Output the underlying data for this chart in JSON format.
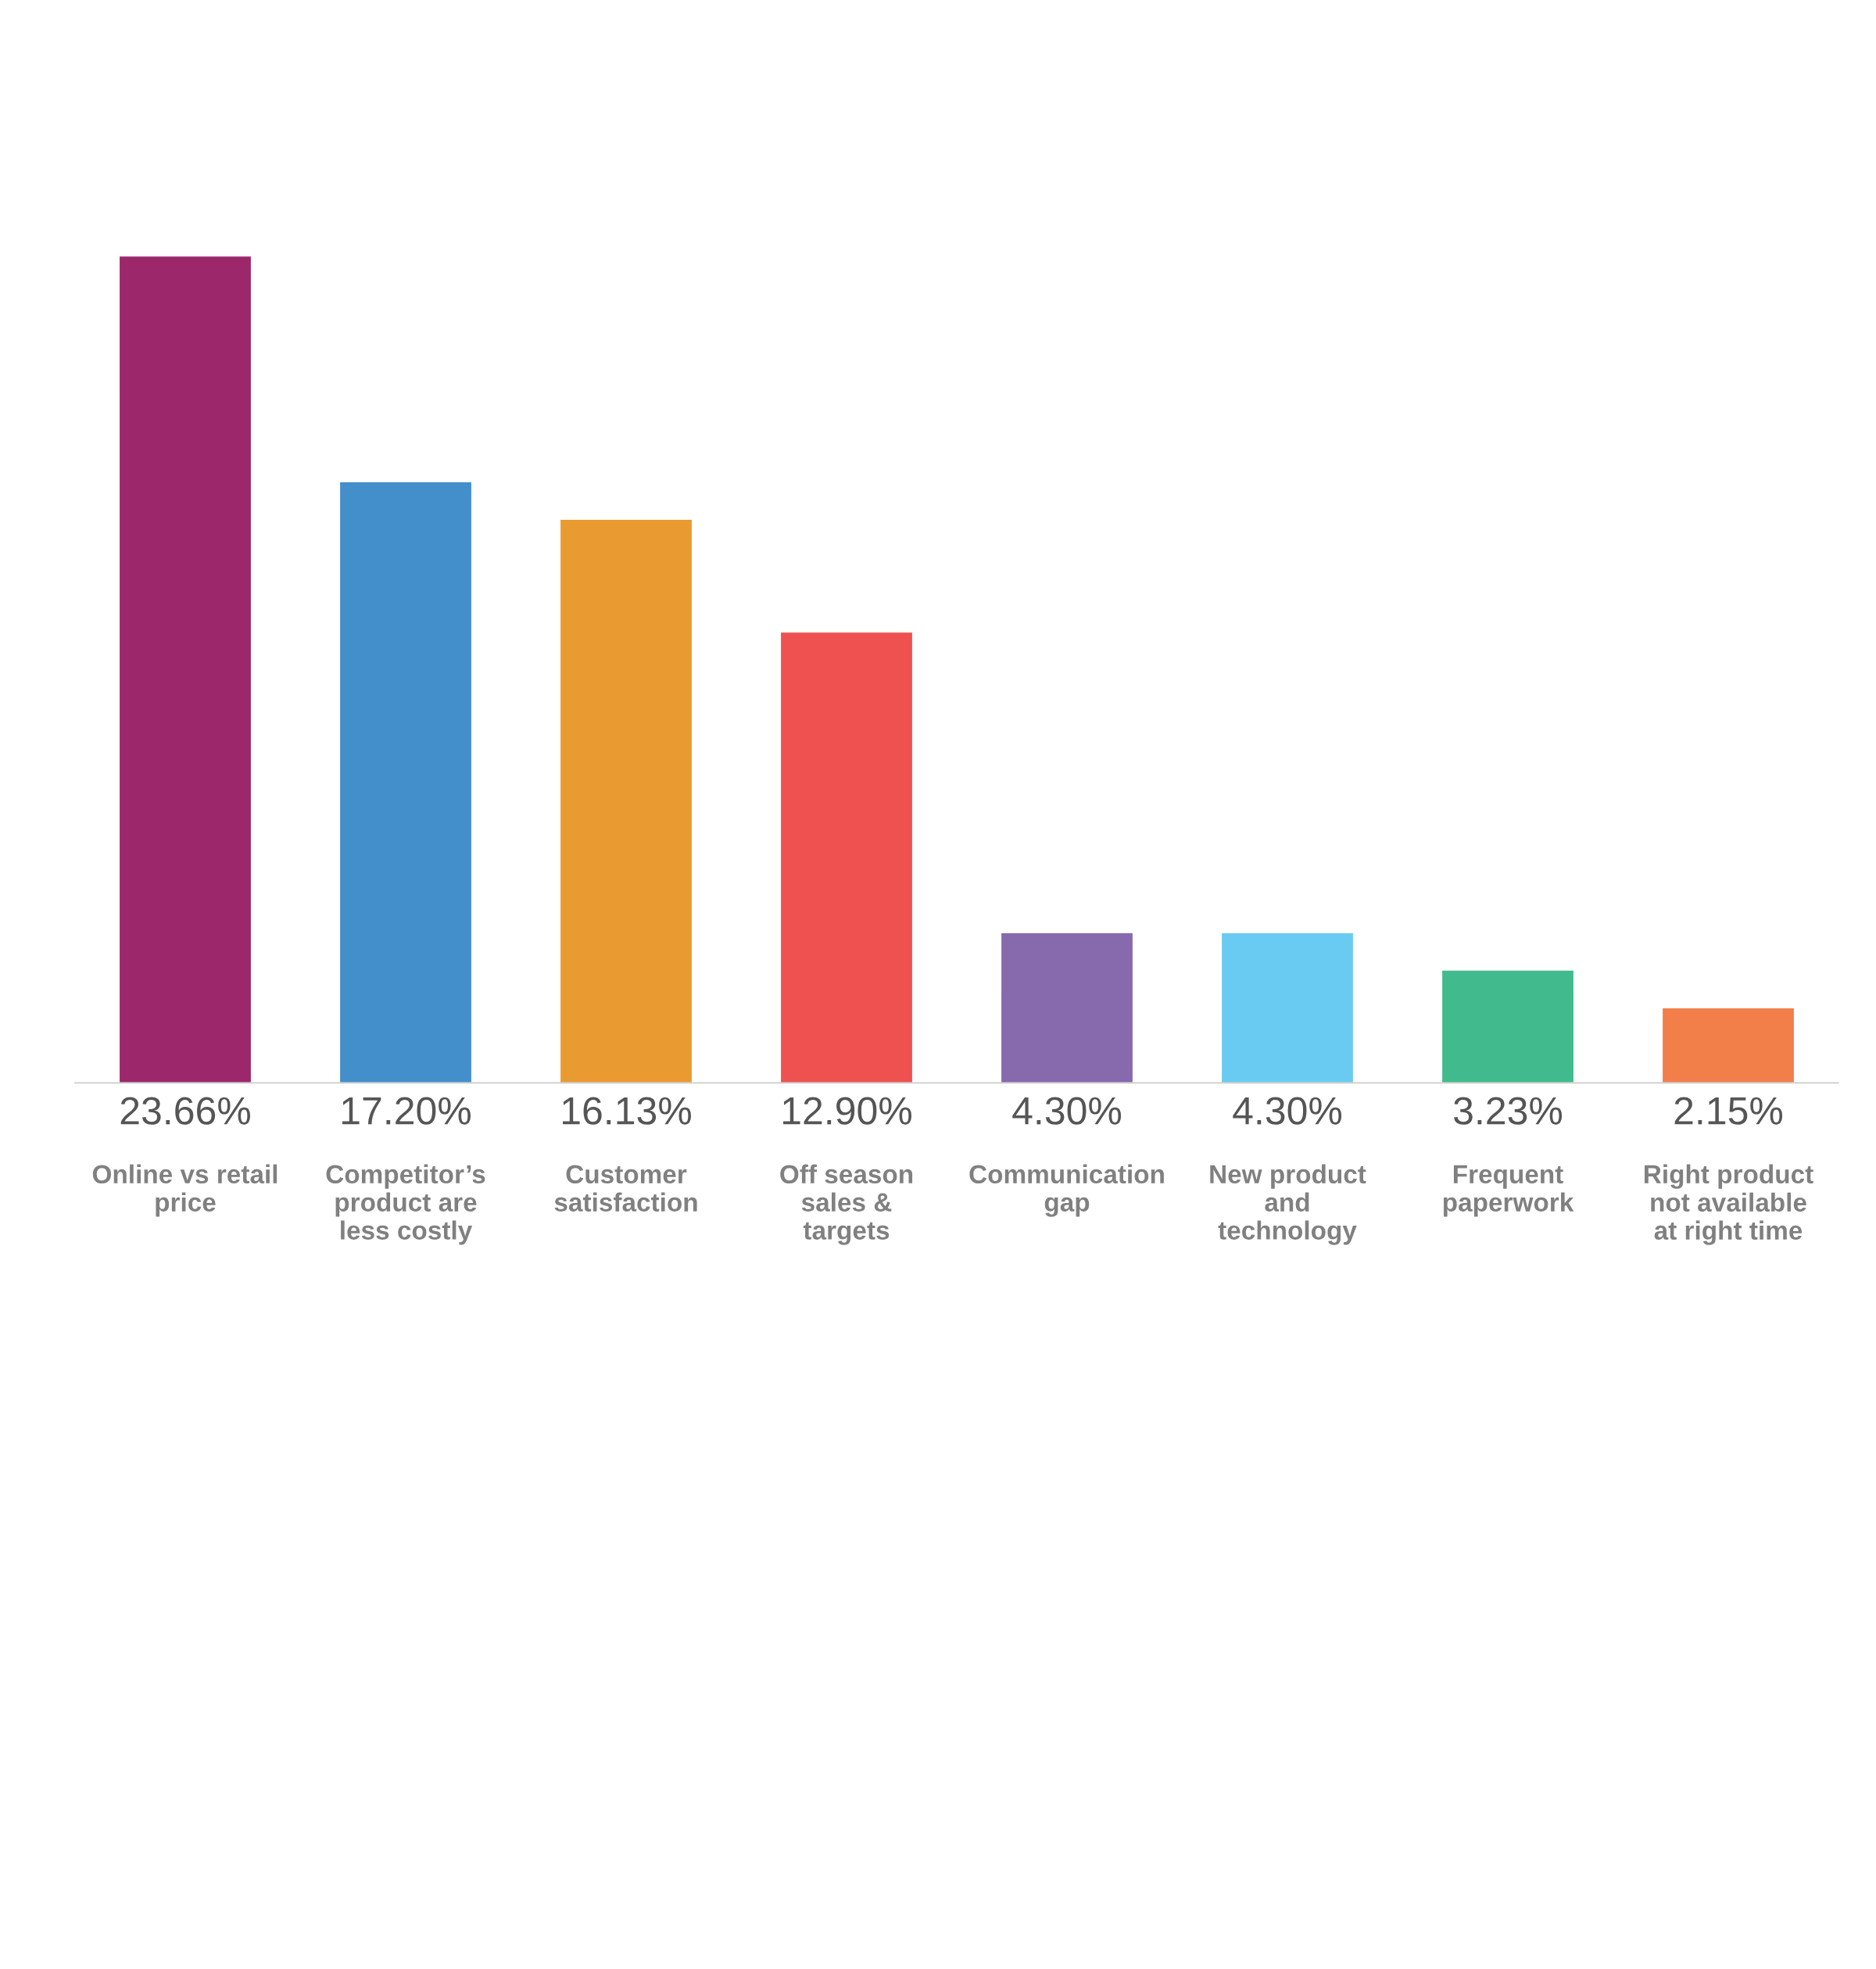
{
  "chart_data": {
    "type": "bar",
    "categories": [
      "Online vs retail\nprice",
      "Competitor’s\nproduct are\nless costly",
      "Customer\nsatisfaction",
      "Off season\nsales &\ntargets",
      "Communication\ngap",
      "New product\nand\ntechnology",
      "Frequent\npaperwork",
      "Right product\nnot available\nat right time"
    ],
    "values": [
      23.66,
      17.2,
      16.13,
      12.9,
      4.3,
      4.3,
      3.23,
      2.15
    ],
    "value_labels": [
      "23.66%",
      "17.20%",
      "16.13%",
      "12.90%",
      "4.30%",
      "4.30%",
      "3.23%",
      "2.15%"
    ],
    "colors": [
      "#9c276b",
      "#428fcc",
      "#e99a31",
      "#ef5151",
      "#8769ae",
      "#6acbf2",
      "#41bb8d",
      "#f27e4a"
    ]
  }
}
